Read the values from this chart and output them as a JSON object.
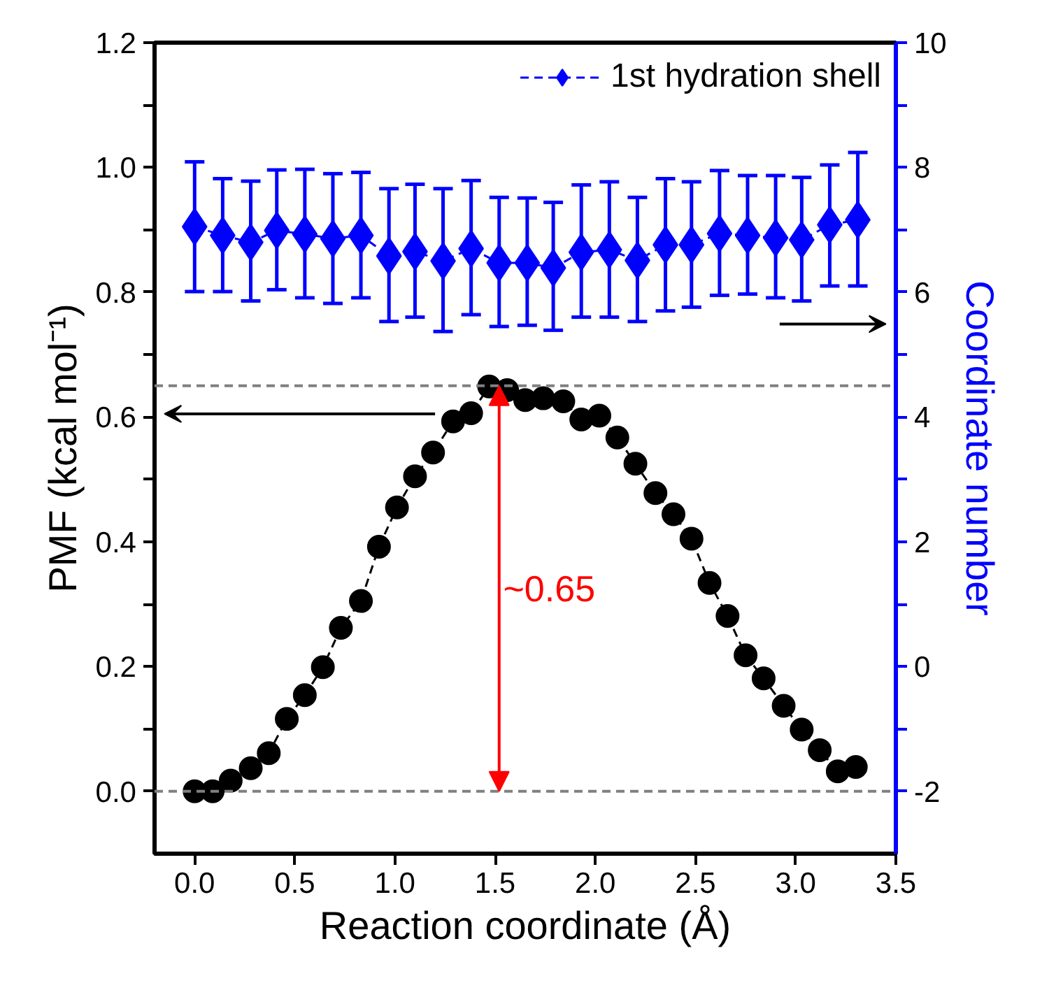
{
  "chart_data": {
    "type": "line",
    "xlabel": "Reaction coordinate (Å)",
    "ylabel": "PMF (kcal mol⁻¹)",
    "y2label": "Coordinate number",
    "xlim": [
      -0.2,
      3.5
    ],
    "ylim": [
      -0.1,
      1.2
    ],
    "y2lim": [
      -3,
      10
    ],
    "xticks": [
      {
        "value": 0,
        "label": "0.0"
      },
      {
        "value": 0.5,
        "label": "0.5"
      },
      {
        "value": 1,
        "label": "1.0"
      },
      {
        "value": 1.5,
        "label": "1.5"
      },
      {
        "value": 2,
        "label": "2.0"
      },
      {
        "value": 2.5,
        "label": "2.5"
      },
      {
        "value": 3,
        "label": "3.0"
      },
      {
        "value": 3.5,
        "label": "3.5"
      }
    ],
    "yticks": [
      {
        "value": 0,
        "label": "0.0"
      },
      {
        "value": 0.1,
        "label": null
      },
      {
        "value": 0.2,
        "label": "0.2"
      },
      {
        "value": 0.3,
        "label": null
      },
      {
        "value": 0.4,
        "label": "0.4"
      },
      {
        "value": 0.5,
        "label": null
      },
      {
        "value": 0.6,
        "label": "0.6"
      },
      {
        "value": 0.7,
        "label": null
      },
      {
        "value": 0.8,
        "label": "0.8"
      },
      {
        "value": 0.9,
        "label": null
      },
      {
        "value": 1,
        "label": "1.0"
      },
      {
        "value": 1.1,
        "label": null
      },
      {
        "value": 1.2,
        "label": "1.2"
      }
    ],
    "y2ticks": [
      -2,
      {
        "value": -1,
        "label": null
      },
      0,
      {
        "value": 1,
        "label": null
      },
      2,
      {
        "value": 3,
        "label": null
      },
      4,
      {
        "value": 5,
        "label": null
      },
      6,
      {
        "value": 7,
        "label": null
      },
      8,
      {
        "value": 9,
        "label": null
      },
      10
    ],
    "grid": false,
    "legend": "top right",
    "line_style": "dashed",
    "series": [
      {
        "color": "#000000",
        "marker": "circle",
        "x": [
          0,
          0.09,
          0.18,
          0.28,
          0.37,
          0.46,
          0.55,
          0.64,
          0.73,
          0.83,
          0.92,
          1.01,
          1.1,
          1.19,
          1.29,
          1.38,
          1.47,
          1.56,
          1.65,
          1.74,
          1.84,
          1.93,
          2.02,
          2.11,
          2.2,
          2.3,
          2.39,
          2.48,
          2.57,
          2.66,
          2.75,
          2.84,
          2.94,
          3.03,
          3.12,
          3.21,
          3.3
        ],
        "values": [
          0,
          0,
          0.017,
          0.037,
          0.061,
          0.116,
          0.154,
          0.199,
          0.262,
          0.305,
          0.392,
          0.455,
          0.505,
          0.543,
          0.593,
          0.606,
          0.649,
          0.643,
          0.627,
          0.63,
          0.625,
          0.596,
          0.602,
          0.567,
          0.525,
          0.478,
          0.444,
          0.405,
          0.334,
          0.281,
          0.218,
          0.181,
          0.137,
          0.099,
          0.066,
          0.032,
          0.039
        ]
      },
      {
        "name": "1st hydration shell",
        "color": "#0000ff",
        "marker": "diamond",
        "axis": "y2",
        "x": [
          0,
          0.14,
          0.28,
          0.41,
          0.55,
          0.69,
          0.83,
          0.97,
          1.1,
          1.24,
          1.38,
          1.52,
          1.66,
          1.79,
          1.93,
          2.07,
          2.21,
          2.35,
          2.48,
          2.62,
          2.76,
          2.9,
          3.03,
          3.17,
          3.31
        ],
        "values": [
          7.05,
          6.91,
          6.8,
          6.99,
          6.93,
          6.86,
          6.91,
          6.58,
          6.65,
          6.5,
          6.7,
          6.47,
          6.47,
          6.39,
          6.64,
          6.68,
          6.51,
          6.76,
          6.76,
          6.94,
          6.91,
          6.87,
          6.84,
          7.08,
          7.16
        ],
        "errors": [
          [
            6.01,
            8.09
          ],
          [
            6.01,
            7.82
          ],
          [
            5.86,
            7.78
          ],
          [
            6.04,
            7.96
          ],
          [
            5.91,
            7.97
          ],
          [
            5.82,
            7.9
          ],
          [
            5.91,
            7.92
          ],
          [
            5.53,
            7.66
          ],
          [
            5.6,
            7.73
          ],
          [
            5.37,
            7.66
          ],
          [
            5.64,
            7.79
          ],
          [
            5.45,
            7.52
          ],
          [
            5.47,
            7.51
          ],
          [
            5.39,
            7.44
          ],
          [
            5.6,
            7.72
          ],
          [
            5.6,
            7.77
          ],
          [
            5.53,
            7.52
          ],
          [
            5.7,
            7.82
          ],
          [
            5.76,
            7.77
          ],
          [
            5.95,
            7.95
          ],
          [
            5.97,
            7.87
          ],
          [
            5.91,
            7.87
          ],
          [
            5.86,
            7.84
          ],
          [
            6.1,
            8.04
          ],
          [
            6.1,
            8.24
          ]
        ]
      }
    ],
    "ref_lines": [
      {
        "axis": "y",
        "value": 0,
        "color": "#808080",
        "line_style": "dashed"
      },
      {
        "axis": "y",
        "value": 0.65,
        "color": "#808080",
        "line_style": "dashed"
      }
    ],
    "annotations": [
      "~0.65"
    ]
  }
}
